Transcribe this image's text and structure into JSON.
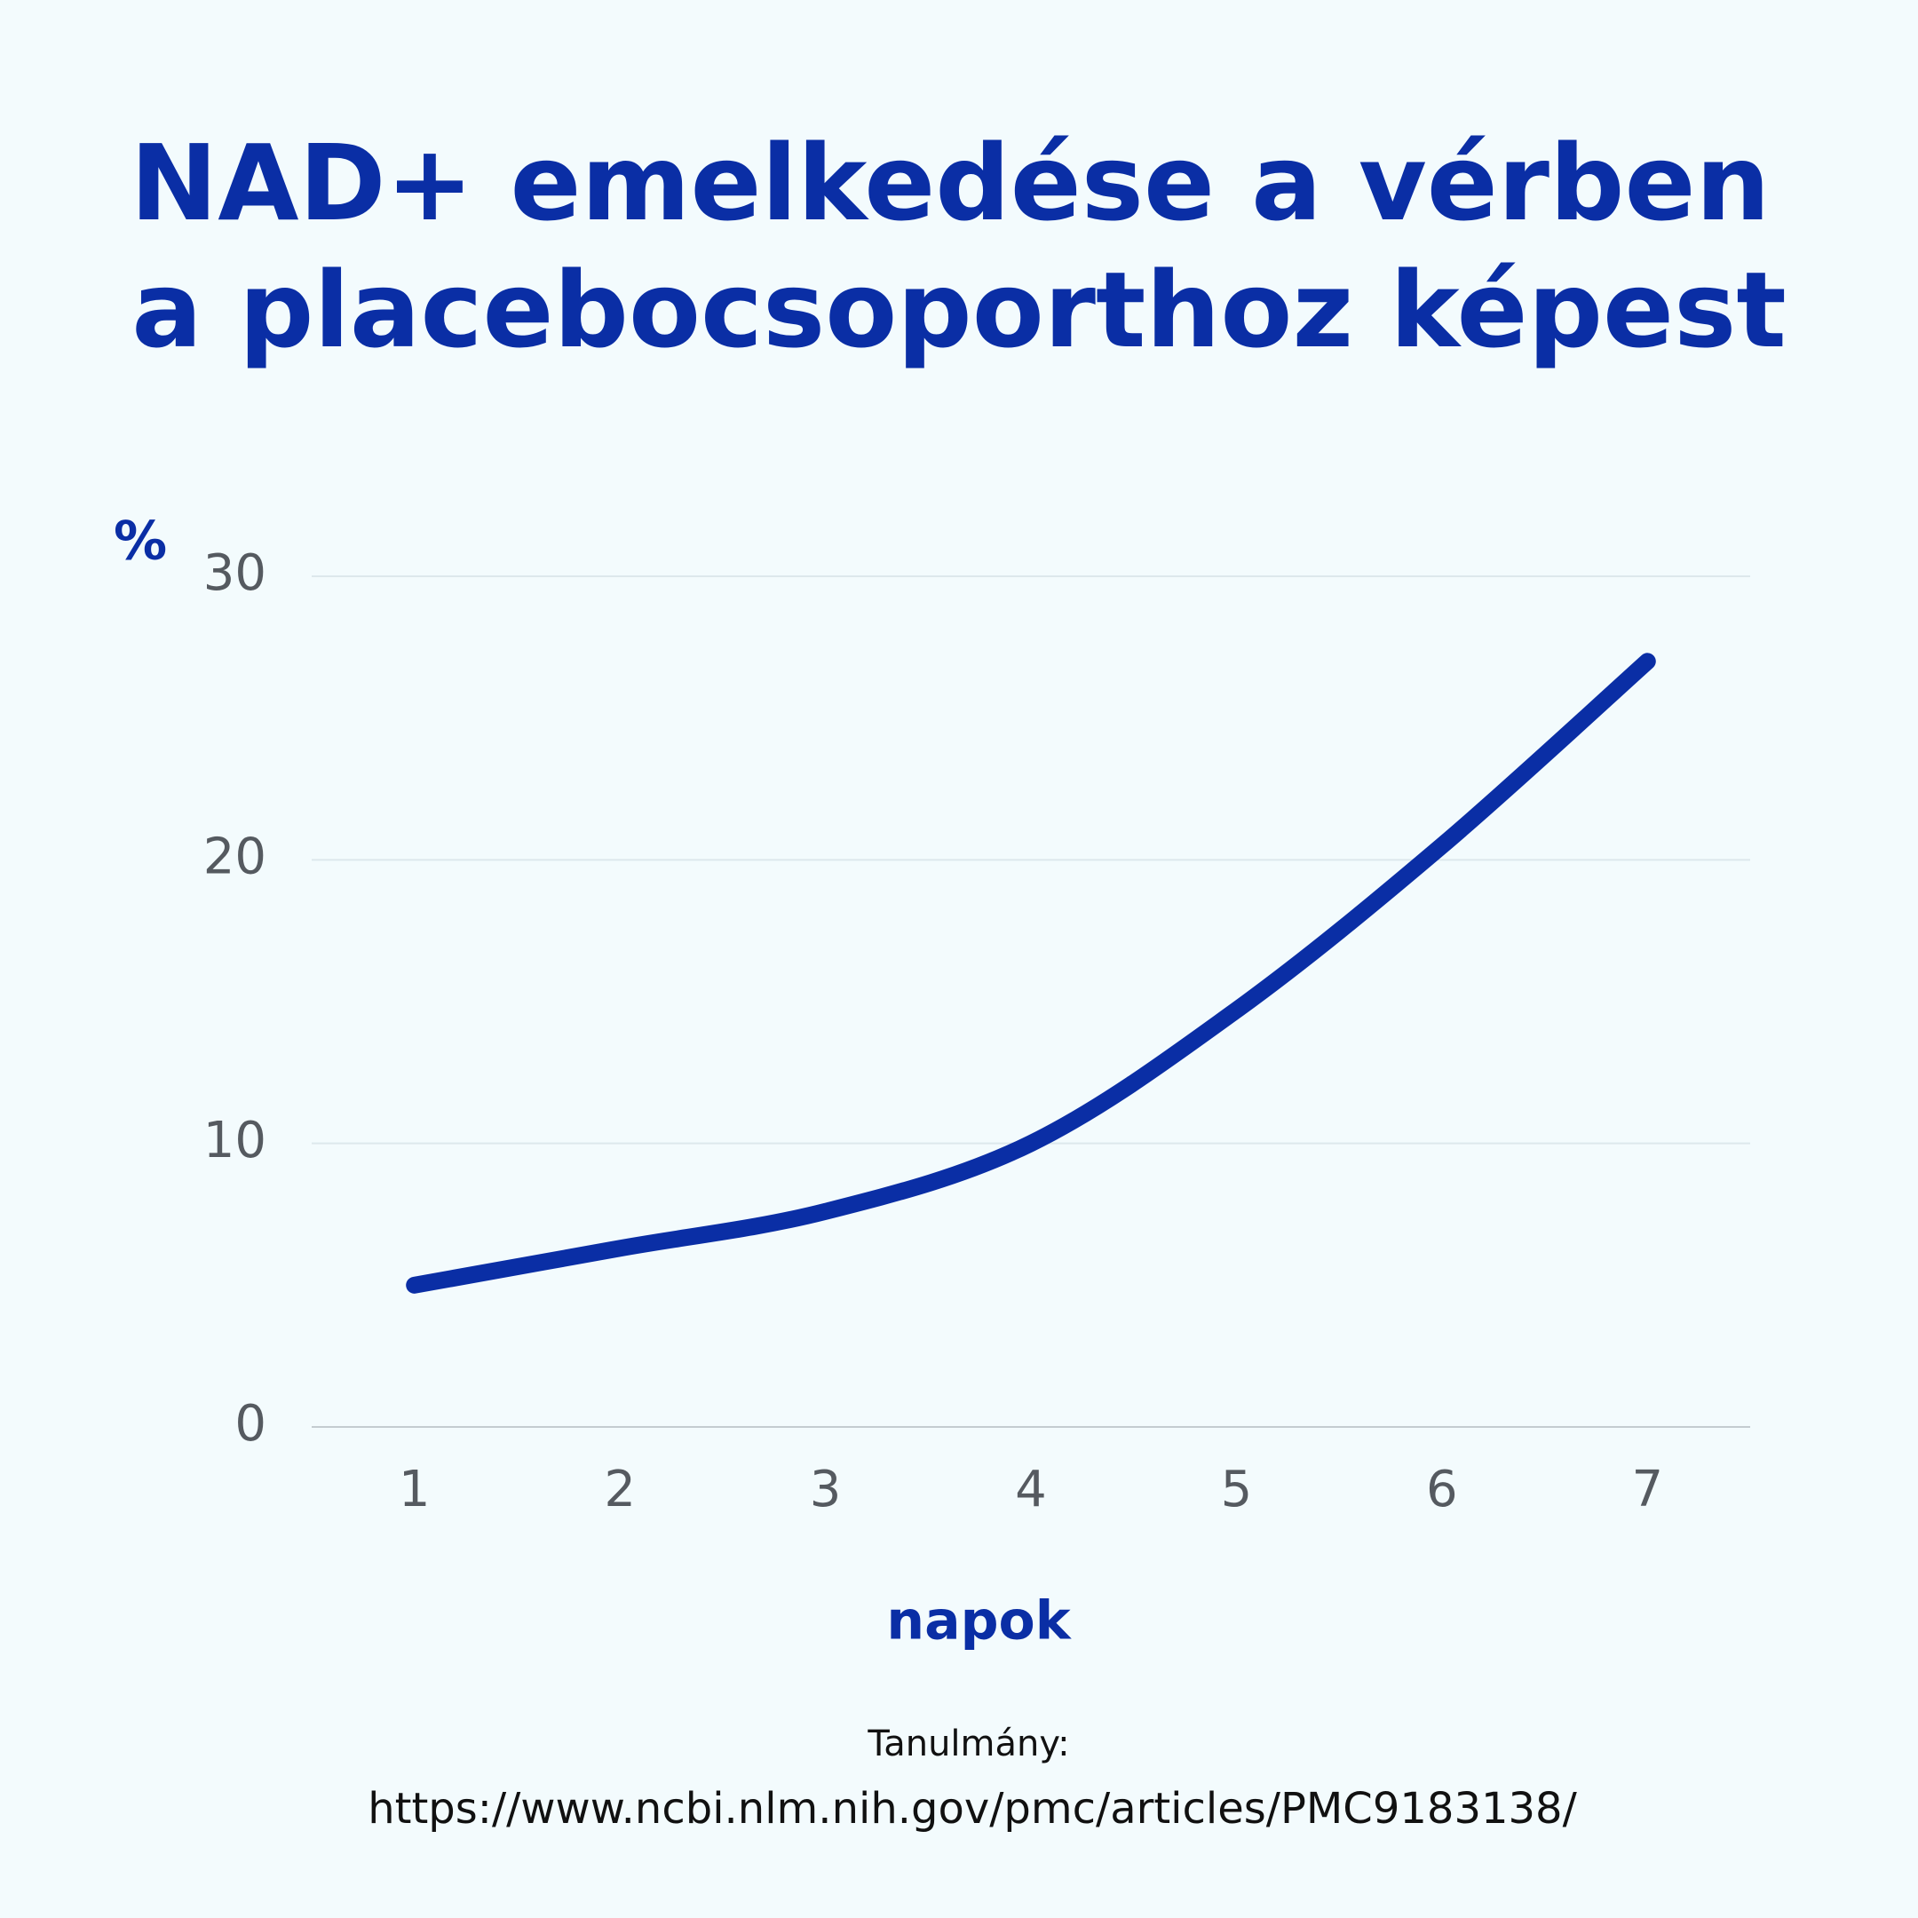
{
  "chart_data": {
    "type": "line",
    "title": [
      "NAD+ emelkedése a vérben",
      "a placebocsoporthoz képest"
    ],
    "y_label": "%",
    "x_label": "napok",
    "annotations": [
      "Tanulmány:",
      "https://www.ncbi.nlm.nih.gov/pmc/articles/PMC9183138/"
    ],
    "x": [
      1,
      2,
      3,
      4,
      5,
      6,
      7
    ],
    "values": [
      5.0,
      6.3,
      7.6,
      10.0,
      14.7,
      20.5,
      27.0
    ],
    "color": "#0a2ea5",
    "xlim": [
      0.5,
      7.5
    ],
    "xticks": [
      1,
      2,
      3,
      4,
      5,
      6,
      7
    ],
    "ylim": [
      0,
      30
    ],
    "yticks": [
      0,
      10,
      20,
      30
    ],
    "grid": true
  }
}
